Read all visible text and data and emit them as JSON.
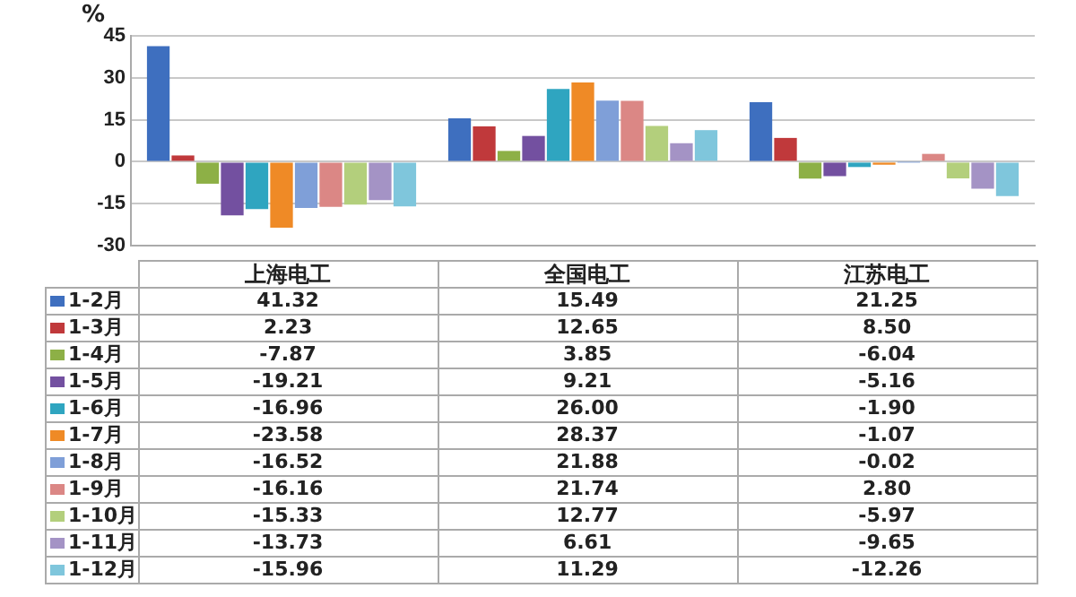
{
  "chart_data": {
    "type": "bar",
    "ylabel": "%",
    "categories": [
      "上海电工",
      "全国电工",
      "江苏电工"
    ],
    "series": [
      {
        "name": "1-2月",
        "color": "#3e6fbf",
        "values": [
          41.32,
          15.49,
          21.25
        ],
        "value_labels": [
          "41.32",
          "15.49",
          "21.25"
        ]
      },
      {
        "name": "1-3月",
        "color": "#c0393b",
        "values": [
          2.23,
          12.65,
          8.5
        ],
        "value_labels": [
          "2.23",
          "12.65",
          "8.50"
        ]
      },
      {
        "name": "1-4月",
        "color": "#8db046",
        "values": [
          -7.87,
          3.85,
          -6.04
        ],
        "value_labels": [
          "-7.87",
          "3.85",
          "-6.04"
        ]
      },
      {
        "name": "1-5月",
        "color": "#7350a0",
        "values": [
          -19.21,
          9.21,
          -5.16
        ],
        "value_labels": [
          "-19.21",
          "9.21",
          "-5.16"
        ]
      },
      {
        "name": "1-6月",
        "color": "#2fa5c0",
        "values": [
          -16.96,
          26.0,
          -1.9
        ],
        "value_labels": [
          "-16.96",
          "26.00",
          "-1.90"
        ]
      },
      {
        "name": "1-7月",
        "color": "#ef8a26",
        "values": [
          -23.58,
          28.37,
          -1.07
        ],
        "value_labels": [
          "-23.58",
          "28.37",
          "-1.07"
        ]
      },
      {
        "name": "1-8月",
        "color": "#7f9fd8",
        "values": [
          -16.52,
          21.88,
          -0.02
        ],
        "value_labels": [
          "-16.52",
          "21.88",
          "-0.02"
        ]
      },
      {
        "name": "1-9月",
        "color": "#db8785",
        "values": [
          -16.16,
          21.74,
          2.8
        ],
        "value_labels": [
          "-16.16",
          "21.74",
          "2.80"
        ]
      },
      {
        "name": "1-10月",
        "color": "#b3cf7c",
        "values": [
          -15.33,
          12.77,
          -5.97
        ],
        "value_labels": [
          "-15.33",
          "12.77",
          "-5.97"
        ]
      },
      {
        "name": "1-11月",
        "color": "#a493c5",
        "values": [
          -13.73,
          6.61,
          -9.65
        ],
        "value_labels": [
          "-13.73",
          "6.61",
          "-9.65"
        ]
      },
      {
        "name": "1-12月",
        "color": "#7fc6dc",
        "values": [
          -15.96,
          11.29,
          -12.26
        ],
        "value_labels": [
          "-15.96",
          "11.29",
          "-12.26"
        ]
      }
    ],
    "ylim": [
      -30,
      45
    ],
    "yticks": [
      -30,
      -15,
      0,
      15,
      30,
      45
    ],
    "grid": "y",
    "legend": "bottom"
  }
}
